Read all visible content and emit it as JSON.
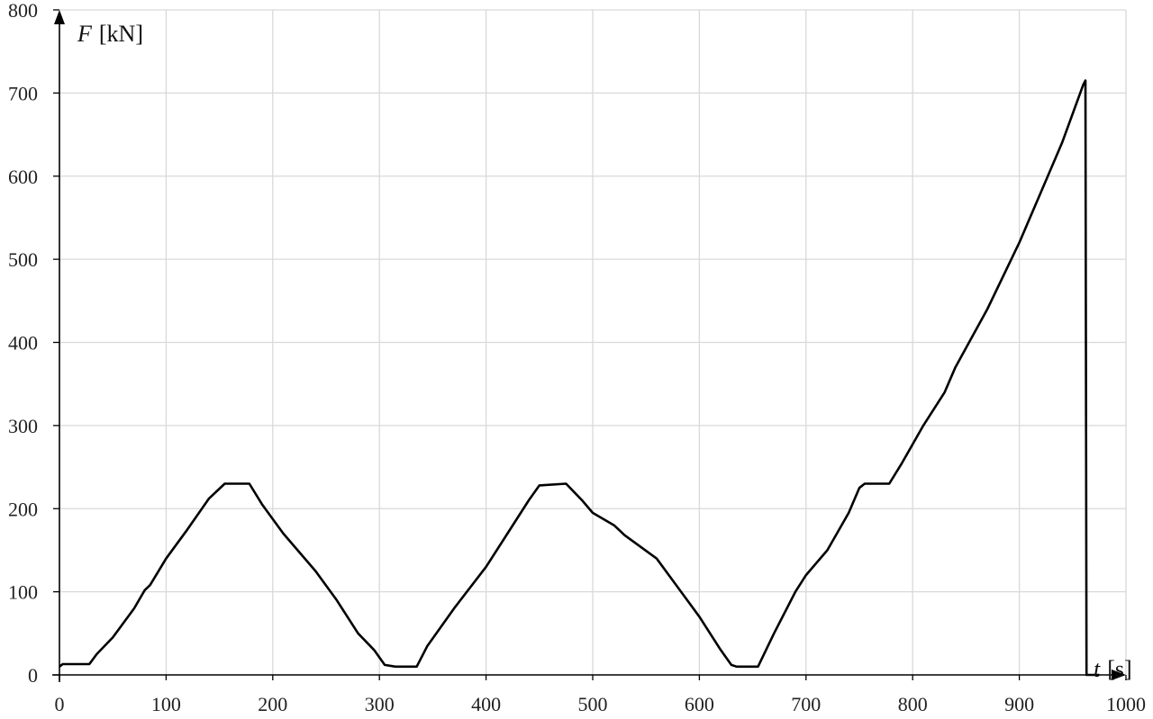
{
  "chart_data": {
    "type": "line",
    "title": "",
    "xlabel_var": "t",
    "xlabel_unit": "[s]",
    "ylabel_var": "F",
    "ylabel_unit": "[kN]",
    "xlim": [
      0,
      1000
    ],
    "ylim": [
      0,
      800
    ],
    "xticks": [
      "0",
      "100",
      "200",
      "300",
      "400",
      "500",
      "600",
      "700",
      "800",
      "900",
      "1000"
    ],
    "yticks": [
      "0",
      "100",
      "200",
      "300",
      "400",
      "500",
      "600",
      "700",
      "800"
    ],
    "grid": true,
    "line_color": "#000000",
    "grid_color": "#d9d9d9",
    "series": [
      {
        "x": [
          0,
          3,
          28,
          35,
          50,
          70,
          80,
          85,
          100,
          120,
          140,
          155,
          178,
          190,
          210,
          240,
          260,
          280,
          295,
          305,
          315,
          335,
          345,
          370,
          400,
          420,
          440,
          450,
          475,
          490,
          500,
          520,
          530,
          560,
          580,
          600,
          620,
          630,
          635,
          655,
          670,
          690,
          700,
          720,
          740,
          750,
          755,
          778,
          790,
          810,
          830,
          840,
          870,
          900,
          920,
          940,
          960,
          962,
          963,
          975
        ],
        "y": [
          10,
          13,
          13,
          25,
          45,
          80,
          102,
          108,
          140,
          175,
          212,
          230,
          230,
          205,
          170,
          125,
          90,
          50,
          30,
          12,
          10,
          10,
          35,
          80,
          130,
          170,
          210,
          228,
          230,
          210,
          195,
          180,
          168,
          140,
          105,
          70,
          30,
          12,
          10,
          10,
          50,
          100,
          120,
          150,
          195,
          225,
          230,
          230,
          255,
          300,
          340,
          370,
          440,
          520,
          580,
          640,
          710,
          715,
          0,
          0
        ]
      }
    ]
  }
}
